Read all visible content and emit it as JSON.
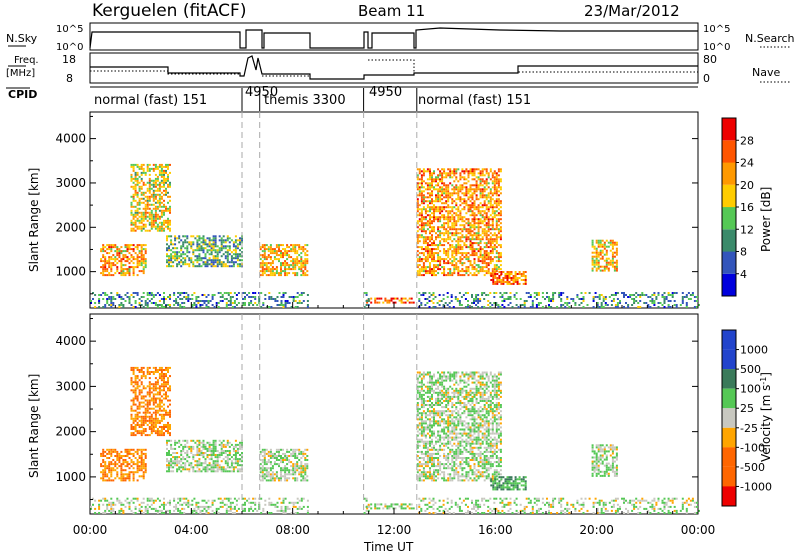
{
  "header": {
    "site": "Kerguelen (fitACF)",
    "beam": "Beam 11",
    "date": "23/Mar/2012"
  },
  "aux_labels": {
    "nsky": "N.Sky",
    "nsearch": "N.Search",
    "freq": "Freq.",
    "freq_unit": "[MHz]",
    "nave": "Nave",
    "cpid": "CPID",
    "nsky_ticks": [
      "10^5",
      "10^0"
    ],
    "nsearch_ticks": [
      "10^5",
      "10^0"
    ],
    "freq_ticks": [
      "18",
      "8"
    ],
    "nave_ticks": [
      "80",
      "0"
    ]
  },
  "cpid_segments": [
    {
      "label": "normal (fast) 151",
      "start": 0,
      "end": 6.0
    },
    {
      "label": "4950",
      "start": 6.0,
      "end": 6.7
    },
    {
      "label": "themis 3300",
      "start": 6.7,
      "end": 10.8
    },
    {
      "label": "4950",
      "start": 10.8,
      "end": 12.9
    },
    {
      "label": "normal (fast) 151",
      "start": 12.9,
      "end": 24
    }
  ],
  "x_axis": {
    "label": "Time UT",
    "ticks": [
      "00:00",
      "04:00",
      "08:00",
      "12:00",
      "16:00",
      "20:00",
      "00:00"
    ],
    "range_hours": [
      0,
      24
    ]
  },
  "power_panel": {
    "ylabel": "Slant Range [km]",
    "yticks": [
      "1000",
      "2000",
      "3000",
      "4000"
    ],
    "colorbar_label": "Power [dB]",
    "colorbar_ticks": [
      "4",
      "8",
      "12",
      "16",
      "20",
      "24",
      "28"
    ]
  },
  "velocity_panel": {
    "ylabel": "Slant Range [km]",
    "yticks": [
      "1000",
      "2000",
      "3000",
      "4000"
    ],
    "colorbar_label": "Velocity [m s",
    "colorbar_label_sup": "-1",
    "colorbar_label_end": "]",
    "colorbar_ticks": [
      "1000",
      "500",
      "100",
      "25",
      "-25",
      "-100",
      "-500",
      "-1000"
    ]
  },
  "chart_data": {
    "type": "heatmap",
    "title": "Kerguelen (fitACF)",
    "xlabel": "Time UT",
    "ylabel": "Slant Range [km]",
    "xlim_hours": [
      0,
      24
    ],
    "ylim_km": [
      180,
      4600
    ],
    "grid": false,
    "mode_change_lines_hours": [
      6.0,
      6.7,
      10.8,
      12.9
    ],
    "gap_intervals_hours": [
      [
        8.6,
        10.8
      ],
      [
        11.0,
        12.9
      ]
    ],
    "power_colors": [
      "#0000dd",
      "#3355bb",
      "#3a8a6a",
      "#55c855",
      "#ffcc00",
      "#ff9900",
      "#ff5500",
      "#ee0000"
    ],
    "velocity_colors": [
      "#2244cc",
      "#3a7a5a",
      "#55c855",
      "#c8c8c0",
      "#ffa500",
      "#ff6600",
      "#ee0000"
    ],
    "echo_regions": [
      {
        "name": "early_fan",
        "t": [
          0.4,
          2.2
        ],
        "r": [
          900,
          1600
        ],
        "power": 22,
        "velocity": -100
      },
      {
        "name": "plume_3000",
        "t": [
          1.6,
          3.2
        ],
        "r": [
          1900,
          3400
        ],
        "power": 18,
        "velocity": -100
      },
      {
        "name": "band_1400",
        "t": [
          3.0,
          6.0
        ],
        "r": [
          1100,
          1800
        ],
        "power": 12,
        "velocity": 20
      },
      {
        "name": "themis_band",
        "t": [
          6.7,
          8.6
        ],
        "r": [
          900,
          1600
        ],
        "power": 20,
        "velocity": 20
      },
      {
        "name": "near_range_4950",
        "t": [
          10.9,
          12.8
        ],
        "r": [
          280,
          380
        ],
        "power": 26,
        "velocity": 20
      },
      {
        "name": "afternoon_fan",
        "t": [
          12.9,
          16.2
        ],
        "r": [
          900,
          3300
        ],
        "power": 22,
        "velocity": 20
      },
      {
        "name": "patch_900",
        "t": [
          15.8,
          17.2
        ],
        "r": [
          700,
          1000
        ],
        "power": 24,
        "velocity": 100
      },
      {
        "name": "patch_1300",
        "t": [
          19.8,
          20.8
        ],
        "r": [
          1000,
          1700
        ],
        "power": 20,
        "velocity": 20
      },
      {
        "name": "ground_scatter",
        "t": [
          0,
          24
        ],
        "r": [
          180,
          500
        ],
        "power": 10,
        "velocity": 20
      }
    ]
  }
}
